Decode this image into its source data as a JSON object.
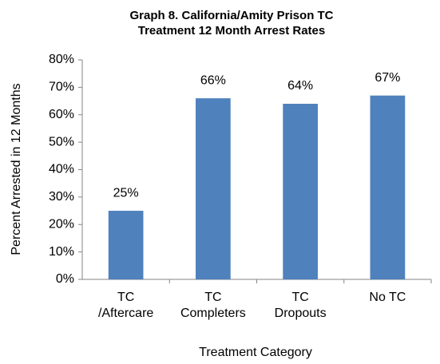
{
  "chart_data": {
    "type": "bar",
    "title": [
      "Graph 8. California/Amity Prison TC",
      "Treatment 12 Month Arrest Rates"
    ],
    "categories": [
      [
        "TC",
        "/Aftercare"
      ],
      [
        "TC",
        "Completers"
      ],
      [
        "TC",
        "Dropouts"
      ],
      [
        "No TC"
      ]
    ],
    "values": [
      25,
      66,
      64,
      67
    ],
    "value_labels": [
      "25%",
      "66%",
      "64%",
      "67%"
    ],
    "color": "#4f81bd",
    "x_label": "Treatment Category",
    "y_label": "Percent Arrested in 12 Months",
    "ylim": [
      0,
      80
    ],
    "yticks": [
      {
        "value": 0,
        "label": "0%"
      },
      {
        "value": 10,
        "label": "10%"
      },
      {
        "value": 20,
        "label": "20%"
      },
      {
        "value": 30,
        "label": "30%"
      },
      {
        "value": 40,
        "label": "40%"
      },
      {
        "value": 50,
        "label": "50%"
      },
      {
        "value": 60,
        "label": "60%"
      },
      {
        "value": 70,
        "label": "70%"
      },
      {
        "value": 80,
        "label": "80%"
      }
    ],
    "grid": false
  }
}
